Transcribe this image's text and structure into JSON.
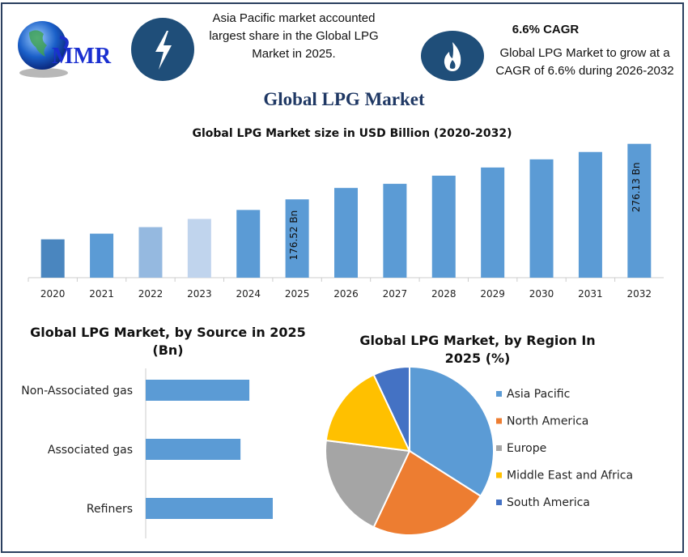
{
  "logo": {
    "text": "MMR"
  },
  "header": {
    "left_icon": "lightning-icon",
    "left_text": "Asia Pacific market accounted largest share in the Global LPG Market in 2025.",
    "right_icon": "flame-icon",
    "right_heading": "6.6% CAGR",
    "right_text": "Global LPG Market to grow at a CAGR of 6.6% during 2026-2032"
  },
  "main_title": "Global LPG Market",
  "colors": {
    "navy": "#1f4e79",
    "bar": "#5b9bd5",
    "frame": "#2a3f5f"
  },
  "chart_data": [
    {
      "type": "bar",
      "title": "Global LPG Market size in USD Billion (2020-2032)",
      "categories": [
        "2020",
        "2021",
        "2022",
        "2023",
        "2024",
        "2025",
        "2026",
        "2027",
        "2028",
        "2029",
        "2030",
        "2031",
        "2032"
      ],
      "values": [
        104.8,
        115.0,
        126.7,
        141.4,
        157.5,
        176.52,
        197.0,
        204.4,
        219.0,
        233.7,
        248.3,
        261.5,
        276.13
      ],
      "bar_colors": [
        "#4a86bf",
        "#5b9bd5",
        "#95b9e0",
        "#c0d4ed",
        "#5b9bd5",
        "#5b9bd5",
        "#5b9bd5",
        "#5b9bd5",
        "#5b9bd5",
        "#5b9bd5",
        "#5b9bd5",
        "#5b9bd5",
        "#5b9bd5"
      ],
      "data_labels": {
        "2025": "176.52 Bn",
        "2032": "276.13 Bn"
      },
      "ylim": [
        36,
        280
      ],
      "grid": false
    },
    {
      "type": "bar",
      "orientation": "horizontal",
      "title": "Global LPG Market, by Source in 2025 (Bn)",
      "categories": [
        "Non-Associated gas",
        "Associated gas",
        "Refiners"
      ],
      "values": [
        56.2,
        51.4,
        68.9
      ],
      "xlim": [
        0,
        92
      ],
      "color": "#5b9bd5",
      "grid": false
    },
    {
      "type": "pie",
      "title": "Global LPG Market, by Region In 2025 (%)",
      "labels": [
        "Asia Pacific",
        "North America",
        "Europe",
        "Middle East and Africa",
        "South America"
      ],
      "values": [
        34,
        23,
        20,
        16,
        7
      ],
      "colors": [
        "#5b9bd5",
        "#ed7d31",
        "#a5a5a5",
        "#ffc000",
        "#4472c4"
      ],
      "legend": "right"
    }
  ]
}
